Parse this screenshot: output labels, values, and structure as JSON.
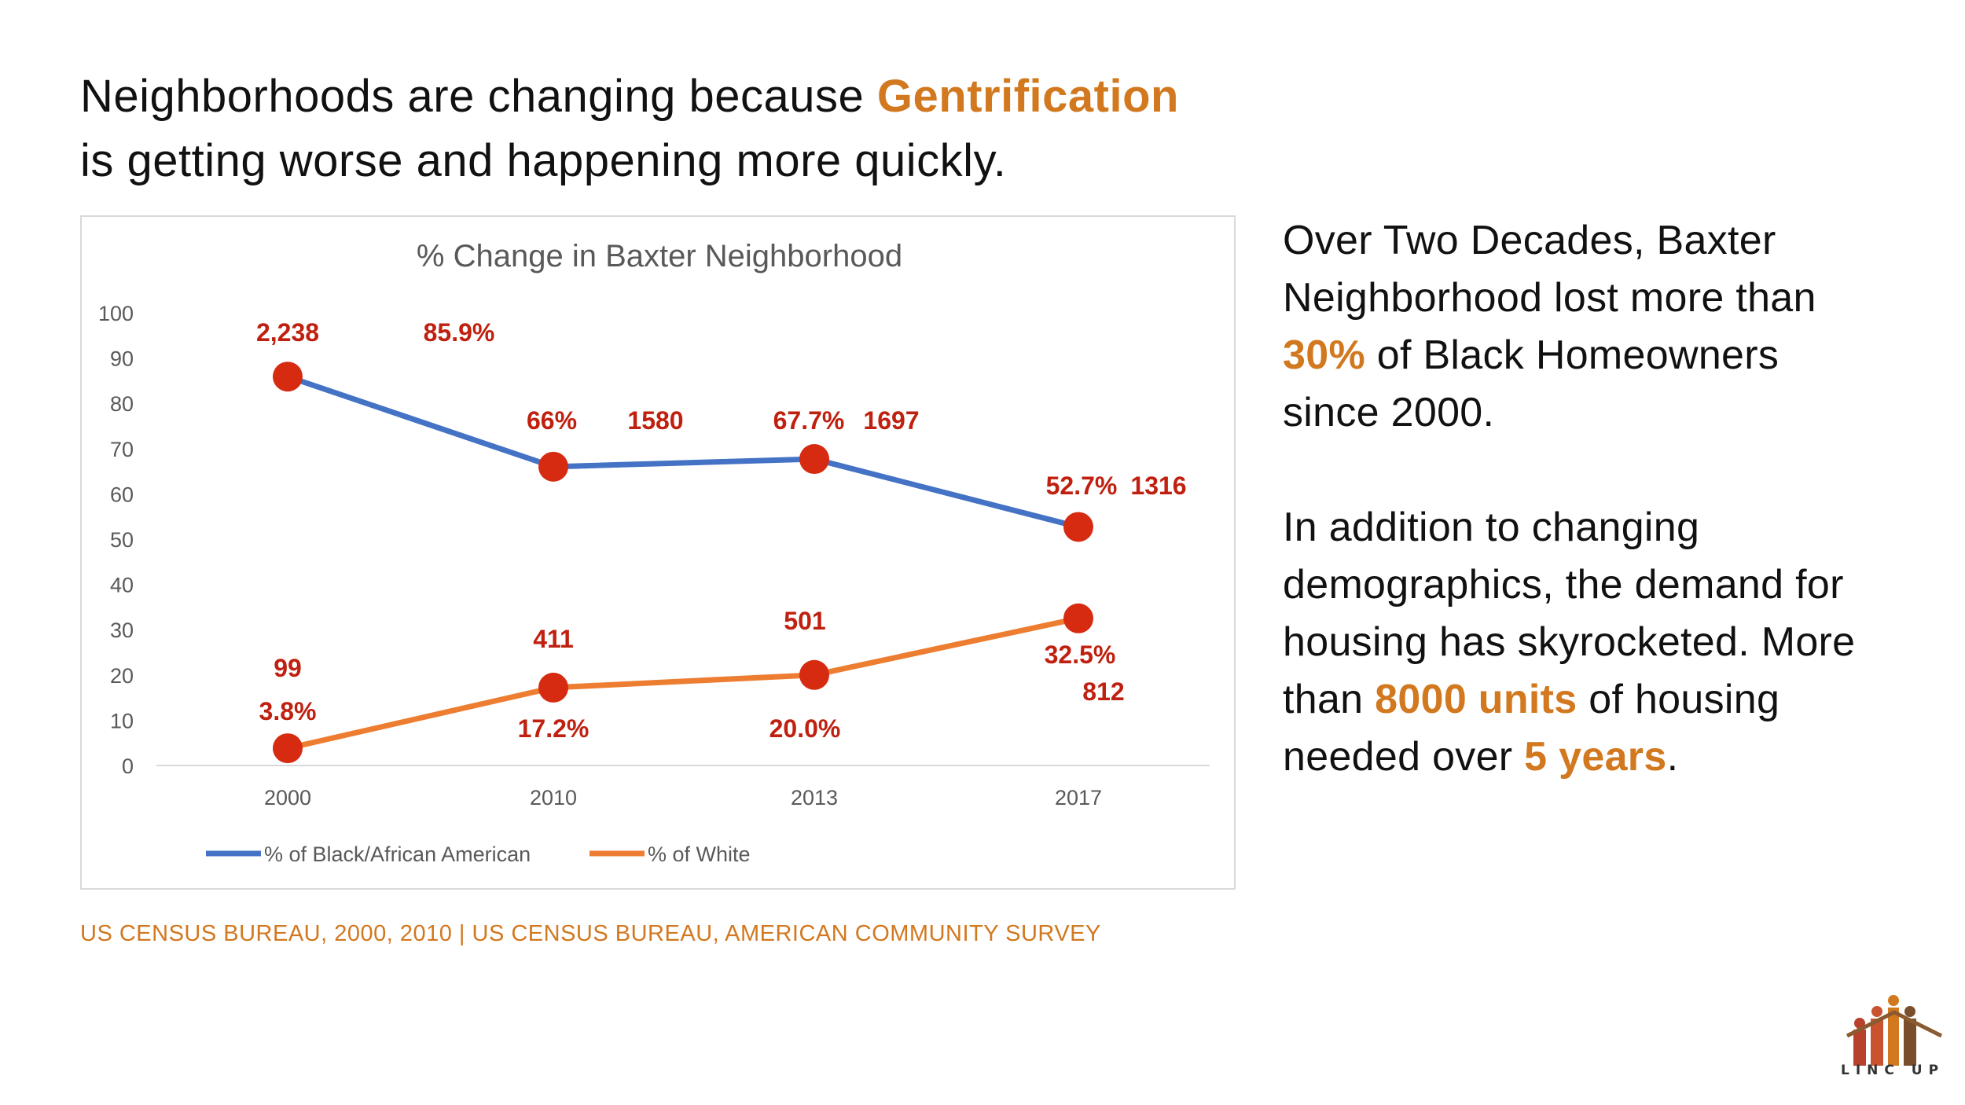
{
  "headline": {
    "part1": "Neighborhoods are changing because ",
    "accent": "Gentrification",
    "line2": "is getting worse and happening more quickly."
  },
  "side": {
    "p1_a": "Over Two Decades, Baxter Neighborhood lost more than ",
    "p1_accent": "30%",
    "p1_b": " of Black Homeowners since 2000.",
    "p2_a": "In addition to changing demographics, the demand for housing has skyrocketed. More than ",
    "p2_accent": "8000 units",
    "p2_b": " of housing needed over ",
    "p2_accent2": "5 years",
    "p2_c": "."
  },
  "source": "US CENSUS BUREAU, 2000, 2010 | US CENSUS BUREAU, AMERICAN COMMUNITY SURVEY",
  "logo": {
    "text": "LINC UP"
  },
  "colors": {
    "accent": "#D2781F",
    "black_series": "#4472C4",
    "white_series": "#ED7D31",
    "marker": "#D62B10",
    "label": "#C0200F"
  },
  "chart_data": {
    "type": "line",
    "title": "% Change in Baxter Neighborhood",
    "categories": [
      "2000",
      "2010",
      "2013",
      "2017"
    ],
    "ylim": [
      0,
      100
    ],
    "yticks": [
      "0",
      "10",
      "20",
      "30",
      "40",
      "50",
      "60",
      "70",
      "80",
      "90",
      "100"
    ],
    "grid": false,
    "legend": "bottom",
    "series": [
      {
        "name": "% of Black/African American",
        "values": [
          85.9,
          66,
          67.7,
          52.7
        ],
        "pct_labels": [
          "85.9%",
          "66%",
          "67.7%",
          "52.7%"
        ],
        "count_labels": [
          "2,238",
          "1580",
          "1697",
          "1316"
        ]
      },
      {
        "name": "% of White",
        "values": [
          3.8,
          17.2,
          20.0,
          32.5
        ],
        "pct_labels": [
          "3.8%",
          "17.2%",
          "20.0%",
          "32.5%"
        ],
        "count_labels": [
          "99",
          "411",
          "501",
          "812"
        ]
      }
    ]
  }
}
